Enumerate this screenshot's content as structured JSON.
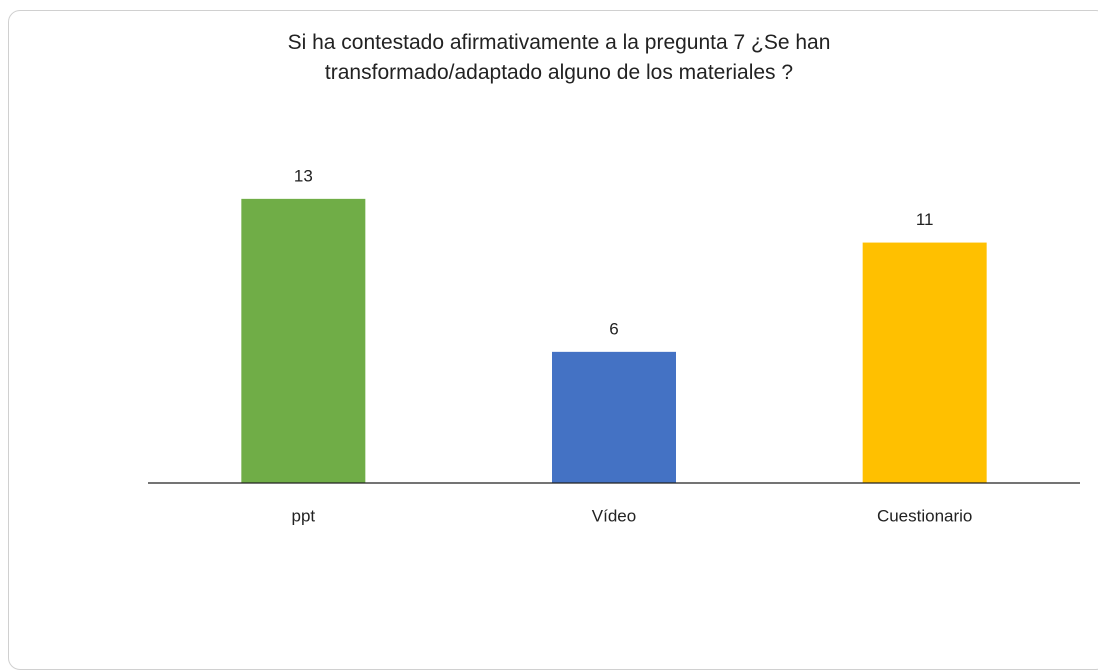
{
  "chart_data": {
    "type": "bar",
    "title": "Si ha contestado afirmativamente a la pregunta 7 ¿Se han transformado/adaptado alguno de los materiales ?",
    "categories": [
      "ppt",
      "Vídeo",
      "Cuestionario"
    ],
    "values": [
      13,
      6,
      11
    ],
    "colors": [
      "#70ad47",
      "#4472c4",
      "#ffc000"
    ],
    "ylim": [
      0,
      14
    ]
  }
}
